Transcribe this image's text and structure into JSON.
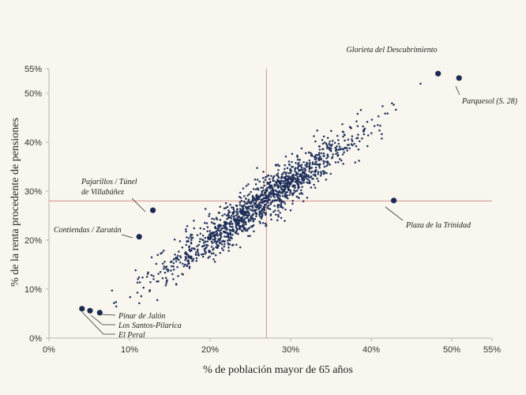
{
  "chart_data": {
    "type": "scatter",
    "xlabel": "% de población mayor de 65 años",
    "ylabel": "% de la renta procedente de pensiones",
    "xlim": [
      0,
      55
    ],
    "ylim": [
      0,
      55
    ],
    "xticks": [
      "0%",
      "10%",
      "20%",
      "30%",
      "40%",
      "50%",
      "55%"
    ],
    "xtick_values": [
      0,
      10,
      20,
      30,
      40,
      50,
      55
    ],
    "yticks": [
      "0%",
      "10%",
      "20%",
      "30%",
      "40%",
      "50%",
      "55%"
    ],
    "ytick_values": [
      0,
      10,
      20,
      30,
      40,
      50,
      55
    ],
    "reference_lines": {
      "x": 27,
      "y": 28
    },
    "point_count": 1400,
    "trend": {
      "intercept": -2.5,
      "slope": 1.14,
      "x_range": [
        5,
        47
      ]
    },
    "highlighted": [
      {
        "name": "Glorieta del Descubrimiento",
        "x": 48.3,
        "y": 54
      },
      {
        "name": "Parquesol (S. 28)",
        "x": 50.9,
        "y": 53.1
      },
      {
        "name": "Plaza de la Trinidad",
        "x": 42.8,
        "y": 28.1
      },
      {
        "name": "Pajarillos / Túnel de Villabáñez",
        "x": 12.9,
        "y": 26.1
      },
      {
        "name": "Contiendas / Zaratán",
        "x": 11.2,
        "y": 20.7
      },
      {
        "name": "Pinar de Jalón",
        "x": 6.3,
        "y": 5.2
      },
      {
        "name": "Los Santos-Pilarica",
        "x": 5.1,
        "y": 5.6
      },
      {
        "name": "El Peral",
        "x": 4.1,
        "y": 6.0
      }
    ]
  }
}
